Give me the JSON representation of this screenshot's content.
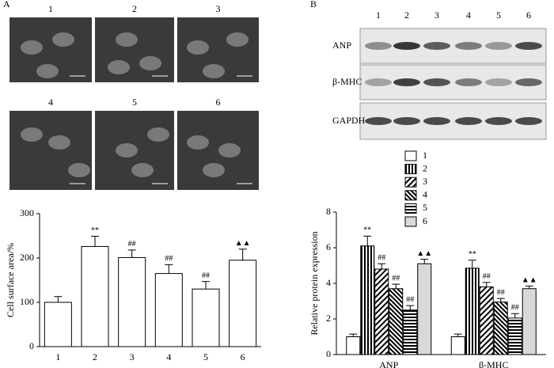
{
  "panel_a": {
    "label": "A",
    "image_labels": [
      "1",
      "2",
      "3",
      "4",
      "5",
      "6"
    ]
  },
  "panel_b": {
    "label": "B",
    "lane_labels": [
      "1",
      "2",
      "3",
      "4",
      "5",
      "6"
    ],
    "row_labels": [
      "ANP",
      "β-MHC",
      "GAPDH"
    ]
  },
  "chart_data": [
    {
      "type": "bar",
      "y_label": "Cell surface area/%",
      "categories": [
        "1",
        "2",
        "3",
        "4",
        "5",
        "6"
      ],
      "values": [
        100,
        226,
        201,
        165,
        130,
        195
      ],
      "errors": [
        13,
        23,
        17,
        20,
        17,
        25
      ],
      "annotations": [
        null,
        "**",
        "##",
        "##",
        "##",
        "▲▲"
      ],
      "color": "#ffffff",
      "ylim": [
        0,
        300
      ],
      "yticks": [
        0,
        100,
        200,
        300
      ]
    },
    {
      "type": "bar",
      "y_label": "Relative protein expression",
      "categories": [
        "ANP",
        "β-MHC"
      ],
      "series": [
        {
          "name": "1",
          "color": "#ffffff",
          "pattern": "none",
          "values": [
            1.0,
            1.0
          ],
          "errors": [
            0.15,
            0.15
          ],
          "annotations": [
            null,
            null
          ]
        },
        {
          "name": "2",
          "color": "#000000",
          "pattern": "vertical",
          "values": [
            6.1,
            4.85
          ],
          "errors": [
            0.55,
            0.45
          ],
          "annotations": [
            "**",
            "**"
          ]
        },
        {
          "name": "3",
          "color": "#000000",
          "pattern": "diagonal",
          "values": [
            4.8,
            3.8
          ],
          "errors": [
            0.3,
            0.25
          ],
          "annotations": [
            "##",
            "##"
          ]
        },
        {
          "name": "4",
          "color": "#000000",
          "pattern": "back-diagonal",
          "values": [
            3.7,
            2.95
          ],
          "errors": [
            0.25,
            0.2
          ],
          "annotations": [
            "##",
            "##"
          ]
        },
        {
          "name": "5",
          "color": "#000000",
          "pattern": "horizontal",
          "values": [
            2.5,
            2.05
          ],
          "errors": [
            0.25,
            0.25
          ],
          "annotations": [
            "##",
            "##"
          ]
        },
        {
          "name": "6",
          "color": "#d9d9d9",
          "pattern": "solid",
          "values": [
            5.1,
            3.7
          ],
          "errors": [
            0.25,
            0.15
          ],
          "annotations": [
            "▲▲",
            "▲▲"
          ]
        }
      ],
      "ylim": [
        0,
        8
      ],
      "yticks": [
        0,
        2,
        4,
        6,
        8
      ]
    }
  ]
}
